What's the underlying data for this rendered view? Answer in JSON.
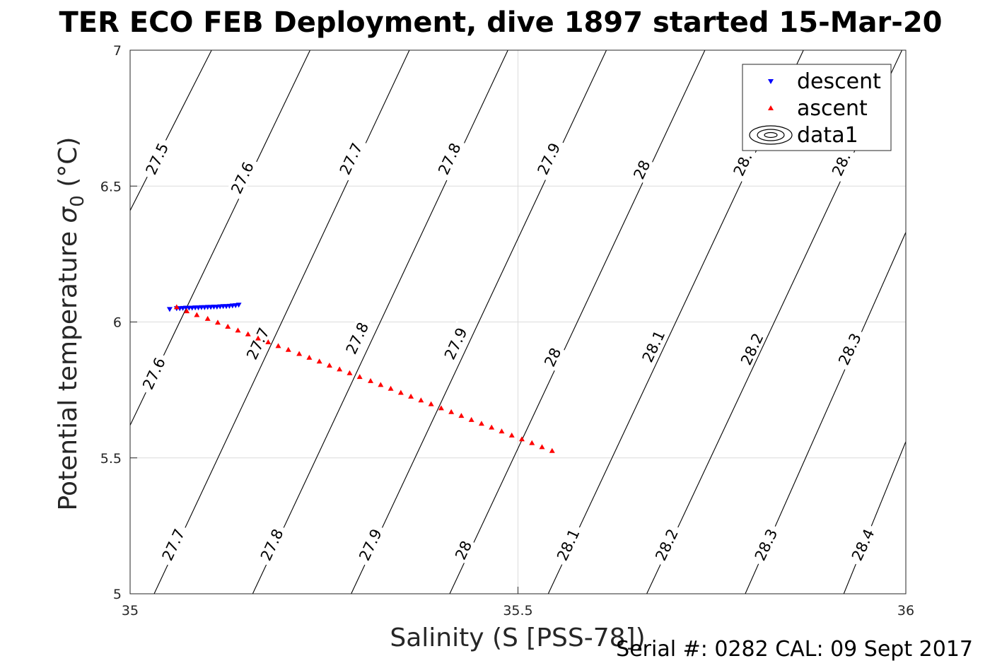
{
  "chart_data": {
    "type": "scatter",
    "title": "TER ECO FEB Deployment, dive 1897 started 15-Mar-20",
    "xlabel": "Salinity (S [PSS-78])",
    "ylabel_main": "Potential temperature ",
    "ylabel_sigma": "σ",
    "ylabel_sub": "0",
    "ylabel_unit": " (°C)",
    "footer": "Serial #: 0282  CAL: 09 Sept 2017",
    "xlim": [
      35,
      36
    ],
    "ylim": [
      5,
      7
    ],
    "xticks": [
      35,
      35.5,
      36
    ],
    "xtick_labels": [
      "35",
      "35.5",
      "36"
    ],
    "yticks": [
      5,
      5.5,
      6,
      6.5,
      7
    ],
    "ytick_labels": [
      "5",
      "5.5",
      "6",
      "6.5",
      "7"
    ],
    "grid": true,
    "legend_position": "top-right",
    "series": [
      {
        "name": "descent",
        "marker": "triangle-down",
        "color": "#0000ff",
        "points": [
          [
            35.051,
            6.047
          ],
          [
            35.06,
            6.05
          ],
          [
            35.064,
            6.05
          ],
          [
            35.068,
            6.051
          ],
          [
            35.072,
            6.052
          ],
          [
            35.076,
            6.052
          ],
          [
            35.08,
            6.052
          ],
          [
            35.084,
            6.053
          ],
          [
            35.088,
            6.053
          ],
          [
            35.092,
            6.054
          ],
          [
            35.096,
            6.054
          ],
          [
            35.1,
            6.055
          ],
          [
            35.104,
            6.055
          ],
          [
            35.108,
            6.056
          ],
          [
            35.112,
            6.056
          ],
          [
            35.116,
            6.057
          ],
          [
            35.12,
            6.058
          ],
          [
            35.124,
            6.058
          ],
          [
            35.128,
            6.059
          ],
          [
            35.132,
            6.06
          ],
          [
            35.136,
            6.061
          ],
          [
            35.14,
            6.063
          ]
        ]
      },
      {
        "name": "ascent",
        "marker": "triangle-up",
        "color": "#ff0000",
        "points": [
          [
            35.06,
            6.055
          ],
          [
            35.073,
            6.04
          ],
          [
            35.086,
            6.026
          ],
          [
            35.1,
            6.012
          ],
          [
            35.113,
            5.998
          ],
          [
            35.126,
            5.983
          ],
          [
            35.139,
            5.969
          ],
          [
            35.152,
            5.955
          ],
          [
            35.165,
            5.94
          ],
          [
            35.178,
            5.926
          ],
          [
            35.191,
            5.912
          ],
          [
            35.204,
            5.898
          ],
          [
            35.218,
            5.883
          ],
          [
            35.231,
            5.869
          ],
          [
            35.244,
            5.855
          ],
          [
            35.257,
            5.84
          ],
          [
            35.27,
            5.826
          ],
          [
            35.283,
            5.812
          ],
          [
            35.296,
            5.798
          ],
          [
            35.31,
            5.783
          ],
          [
            35.323,
            5.769
          ],
          [
            35.336,
            5.755
          ],
          [
            35.349,
            5.74
          ],
          [
            35.362,
            5.726
          ],
          [
            35.375,
            5.712
          ],
          [
            35.388,
            5.698
          ],
          [
            35.401,
            5.683
          ],
          [
            35.414,
            5.669
          ],
          [
            35.427,
            5.655
          ],
          [
            35.44,
            5.64
          ],
          [
            35.453,
            5.626
          ],
          [
            35.466,
            5.612
          ],
          [
            35.479,
            5.598
          ],
          [
            35.492,
            5.583
          ],
          [
            35.505,
            5.569
          ],
          [
            35.518,
            5.555
          ],
          [
            35.531,
            5.54
          ],
          [
            35.544,
            5.526
          ]
        ]
      },
      {
        "name": "data1",
        "marker": "contour",
        "color": "#000000"
      }
    ],
    "contours": [
      {
        "level": "27.5",
        "points": [
          [
            35.0,
            6.41
          ],
          [
            35.105,
            7.0
          ]
        ]
      },
      {
        "level": "27.6",
        "points": [
          [
            35.0,
            5.62
          ],
          [
            35.232,
            7.0
          ]
        ]
      },
      {
        "level": "27.7",
        "points": [
          [
            35.031,
            5.0
          ],
          [
            35.36,
            7.0
          ]
        ]
      },
      {
        "level": "27.8",
        "points": [
          [
            35.158,
            5.0
          ],
          [
            35.487,
            7.0
          ]
        ]
      },
      {
        "level": "27.9",
        "points": [
          [
            35.285,
            5.0
          ],
          [
            35.614,
            7.0
          ]
        ]
      },
      {
        "level": "28",
        "points": [
          [
            35.412,
            5.0
          ],
          [
            35.741,
            7.0
          ]
        ]
      },
      {
        "level": "28.1",
        "points": [
          [
            35.539,
            5.0
          ],
          [
            35.868,
            7.0
          ]
        ]
      },
      {
        "level": "28.2",
        "points": [
          [
            35.666,
            5.0
          ],
          [
            35.995,
            7.0
          ]
        ]
      },
      {
        "level": "28.3",
        "points": [
          [
            35.793,
            5.0
          ],
          [
            36.0,
            6.33
          ]
        ]
      },
      {
        "level": "28.4",
        "points": [
          [
            35.92,
            5.0
          ],
          [
            36.0,
            5.56
          ]
        ]
      }
    ],
    "contour_labels": [
      {
        "text": "27.5",
        "x": 35.035,
        "y": 6.6
      },
      {
        "text": "27.6",
        "x": 35.145,
        "y": 6.53
      },
      {
        "text": "27.7",
        "x": 35.285,
        "y": 6.6
      },
      {
        "text": "27.8",
        "x": 35.412,
        "y": 6.6
      },
      {
        "text": "27.9",
        "x": 35.54,
        "y": 6.6
      },
      {
        "text": "28",
        "x": 35.66,
        "y": 6.56
      },
      {
        "text": "28.",
        "x": 35.79,
        "y": 6.58
      },
      {
        "text": "28.",
        "x": 35.917,
        "y": 6.58
      },
      {
        "text": "27.6",
        "x": 35.031,
        "y": 5.81
      },
      {
        "text": "27.7",
        "x": 35.165,
        "y": 5.92
      },
      {
        "text": "27.8",
        "x": 35.293,
        "y": 5.94
      },
      {
        "text": "27.9",
        "x": 35.42,
        "y": 5.92
      },
      {
        "text": "28",
        "x": 35.545,
        "y": 5.87
      },
      {
        "text": "28.1",
        "x": 35.675,
        "y": 5.91
      },
      {
        "text": "28.2",
        "x": 35.802,
        "y": 5.9
      },
      {
        "text": "28.3",
        "x": 35.928,
        "y": 5.9
      },
      {
        "text": "27.7",
        "x": 35.056,
        "y": 5.18
      },
      {
        "text": "27.8",
        "x": 35.183,
        "y": 5.18
      },
      {
        "text": "27.9",
        "x": 35.31,
        "y": 5.18
      },
      {
        "text": "28",
        "x": 35.43,
        "y": 5.16
      },
      {
        "text": "28.1",
        "x": 35.565,
        "y": 5.18
      },
      {
        "text": "28.2",
        "x": 35.692,
        "y": 5.18
      },
      {
        "text": "28.3",
        "x": 35.82,
        "y": 5.18
      },
      {
        "text": "28.4",
        "x": 35.945,
        "y": 5.18
      }
    ]
  }
}
